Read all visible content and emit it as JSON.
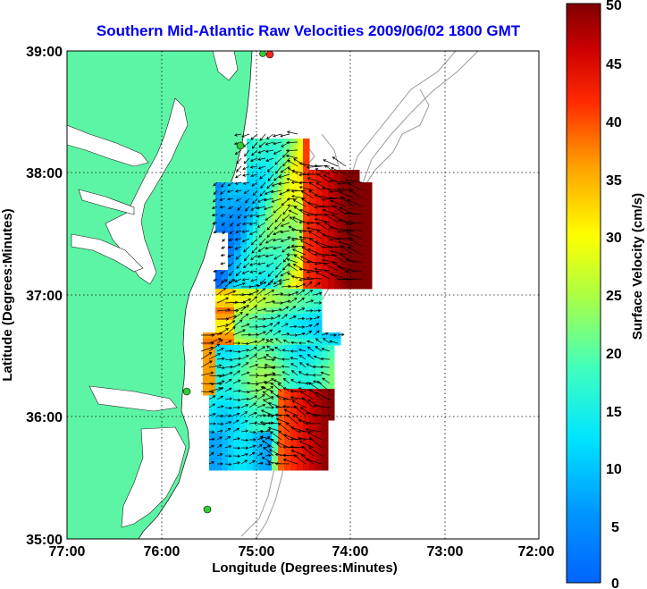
{
  "title": "Southern Mid-Atlantic Raw Velocities 2009/06/02 1800 GMT",
  "map": {
    "xlabel": "Longitude (Degrees:Minutes)",
    "ylabel": "Latitude (Degrees:Minutes)",
    "x_ticks": [
      "77:00",
      "76:00",
      "75:00",
      "74:00",
      "73:00",
      "72:00"
    ],
    "y_ticks": [
      "39:00",
      "38:00",
      "37:00",
      "36:00",
      "35:00"
    ],
    "x_range_deg_west": [
      77,
      72
    ],
    "y_range_deg_north": [
      35,
      39
    ],
    "grid": "dotted",
    "colors": {
      "land": "#5cf5a5",
      "ocean": "#ffffff",
      "bathymetry": "#9a9a9a",
      "vectors": "#000000",
      "stations": "#33cc33",
      "station_alt": "#ff2222"
    }
  },
  "colorbar": {
    "label": "Surface Velocity (cm/s)",
    "ticks": [
      "50",
      "45",
      "40",
      "35",
      "30",
      "25",
      "20",
      "15",
      "10",
      "5",
      "0"
    ],
    "range": [
      0,
      50
    ],
    "colormap": "jet"
  }
}
